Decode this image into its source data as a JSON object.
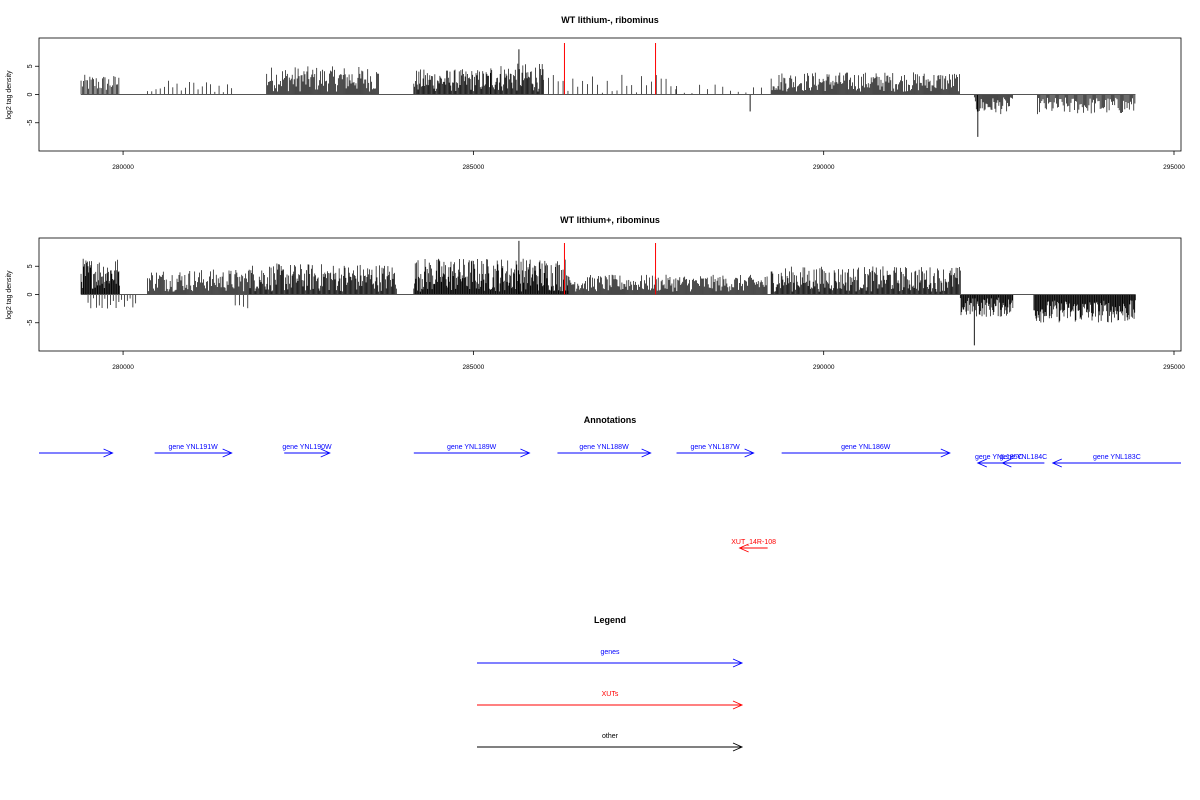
{
  "chart_data": [
    {
      "type": "bar",
      "title": "WT lithium-, ribominus",
      "ylabel": "log2 tag density",
      "xlim": [
        278800,
        295100
      ],
      "ylim": [
        -10,
        10
      ],
      "x_ticks": [
        280000,
        285000,
        290000,
        295000
      ],
      "y_ticks": [
        -5,
        0,
        5
      ],
      "baseline_range": [
        279400,
        294450
      ],
      "markers": [
        {
          "x": 286300,
          "color": "#ff0000"
        },
        {
          "x": 287600,
          "color": "#ff0000"
        }
      ],
      "density_segments": [
        {
          "from": 279400,
          "to": 279950,
          "min": 0.5,
          "max": 3.5,
          "step": 18
        },
        {
          "from": 280350,
          "to": 281600,
          "min": 0.2,
          "max": 2.5,
          "step": 60
        },
        {
          "from": 282050,
          "to": 283650,
          "min": 0.5,
          "max": 5.0,
          "step": 14
        },
        {
          "from": 284150,
          "to": 285250,
          "min": 0.5,
          "max": 4.5,
          "step": 12
        },
        {
          "from": 285250,
          "to": 286000,
          "min": 0.5,
          "max": 5.5,
          "step": 12
        },
        {
          "from": 286000,
          "to": 287900,
          "min": 0.2,
          "max": 3.5,
          "step": 70
        },
        {
          "from": 287900,
          "to": 289200,
          "min": 0.2,
          "max": 2.0,
          "step": 110
        },
        {
          "from": 289250,
          "to": 291950,
          "min": 0.5,
          "max": 4.0,
          "step": 14
        },
        {
          "from": 292150,
          "to": 292700,
          "min": -3.5,
          "max": -0.5,
          "step": 14
        },
        {
          "from": 293050,
          "to": 294450,
          "min": -3.5,
          "max": -0.5,
          "step": 16
        }
      ],
      "spikes": [
        {
          "x": 285650,
          "value": 8
        },
        {
          "x": 288950,
          "value": -3
        },
        {
          "x": 292200,
          "value": -7.5
        }
      ]
    },
    {
      "type": "bar",
      "title": "WT lithium+, ribominus",
      "ylabel": "log2 tag density",
      "xlim": [
        278800,
        295100
      ],
      "ylim": [
        -10,
        10
      ],
      "x_ticks": [
        280000,
        285000,
        290000,
        295000
      ],
      "y_ticks": [
        -5,
        0,
        5
      ],
      "baseline_range": [
        279400,
        294450
      ],
      "markers": [
        {
          "x": 286300,
          "color": "#ff0000"
        },
        {
          "x": 287600,
          "color": "#ff0000"
        }
      ],
      "density_segments": [
        {
          "from": 279400,
          "to": 279950,
          "min": 1.0,
          "max": 6.5,
          "step": 10
        },
        {
          "from": 279500,
          "to": 280200,
          "min": -2.5,
          "max": -0.5,
          "step": 40
        },
        {
          "from": 280350,
          "to": 281800,
          "min": 0.5,
          "max": 4.5,
          "step": 14
        },
        {
          "from": 281600,
          "to": 281800,
          "min": -2.5,
          "max": -0.5,
          "step": 60
        },
        {
          "from": 281800,
          "to": 283900,
          "min": 0.5,
          "max": 5.5,
          "step": 12
        },
        {
          "from": 284150,
          "to": 286350,
          "min": 0.5,
          "max": 6.5,
          "step": 10
        },
        {
          "from": 286350,
          "to": 289200,
          "min": 0.5,
          "max": 3.5,
          "step": 14
        },
        {
          "from": 289250,
          "to": 291950,
          "min": 0.5,
          "max": 5.0,
          "step": 12
        },
        {
          "from": 291950,
          "to": 292700,
          "min": -4.0,
          "max": -0.5,
          "step": 10
        },
        {
          "from": 293000,
          "to": 294450,
          "min": -5.0,
          "max": -1.0,
          "step": 10
        }
      ],
      "spikes": [
        {
          "x": 285650,
          "value": 9.5
        },
        {
          "x": 292150,
          "value": -9
        }
      ]
    }
  ],
  "annotations": {
    "title": "Annotations",
    "genes": [
      {
        "start": 278800,
        "end": 279850,
        "strand": "+",
        "label": "",
        "row": 0
      },
      {
        "start": 280450,
        "end": 281550,
        "strand": "+",
        "label": "gene YNL191W",
        "row": 0
      },
      {
        "start": 282300,
        "end": 282950,
        "strand": "+",
        "label": "gene YNL190W",
        "row": 0
      },
      {
        "start": 284150,
        "end": 285800,
        "strand": "+",
        "label": "gene YNL189W",
        "row": 0
      },
      {
        "start": 286200,
        "end": 287530,
        "strand": "+",
        "label": "gene YNL188W",
        "row": 0
      },
      {
        "start": 287900,
        "end": 289000,
        "strand": "+",
        "label": "gene YNL187W",
        "row": 0
      },
      {
        "start": 289400,
        "end": 291800,
        "strand": "+",
        "label": "gene YNL186W",
        "row": 0
      },
      {
        "start": 292200,
        "end": 292800,
        "strand": "-",
        "label": "gene YNL185C",
        "row": 1
      },
      {
        "start": 292550,
        "end": 293150,
        "strand": "-",
        "label": "gene YNL184C",
        "row": 1
      },
      {
        "start": 293270,
        "end": 295100,
        "strand": "-",
        "label": "gene YNL183C",
        "row": 1
      }
    ],
    "xuts": [
      {
        "start": 288800,
        "end": 289200,
        "strand": "-",
        "label": "XUT_14R-108"
      }
    ]
  },
  "legend": {
    "title": "Legend",
    "items": [
      {
        "label": "genes",
        "color": "#0000ff"
      },
      {
        "label": "XUTs",
        "color": "#ff0000"
      },
      {
        "label": "other",
        "color": "#000000"
      }
    ]
  }
}
